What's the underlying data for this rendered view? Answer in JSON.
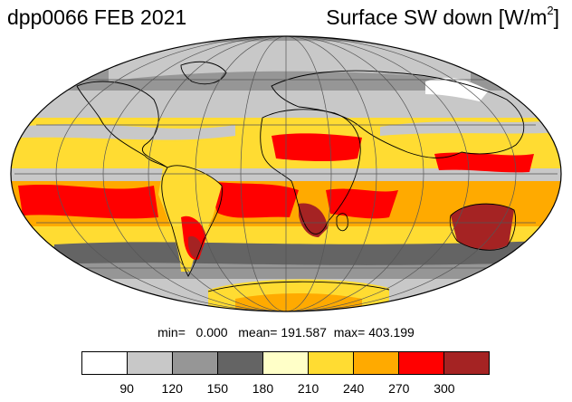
{
  "title_left": "dpp0066 FEB 2021",
  "title_right": {
    "text": "Surface SW down [W/m",
    "sup": "2",
    "close": "]"
  },
  "stats": {
    "text": "min=   0.000   mean= 191.587  max= 403.199"
  },
  "colorbar": {
    "colors": [
      "#ffffff",
      "#c8c8c8",
      "#969696",
      "#646464",
      "#ffffc8",
      "#ffdc32",
      "#ffaa00",
      "#ff0000",
      "#a52323"
    ],
    "labels": [
      "90",
      "120",
      "150",
      "180",
      "210",
      "240",
      "270",
      "300"
    ]
  },
  "map": {
    "projection": "mollweide",
    "variable": "surface shortwave down",
    "grid": "lat/lon lines every 30 degrees"
  }
}
